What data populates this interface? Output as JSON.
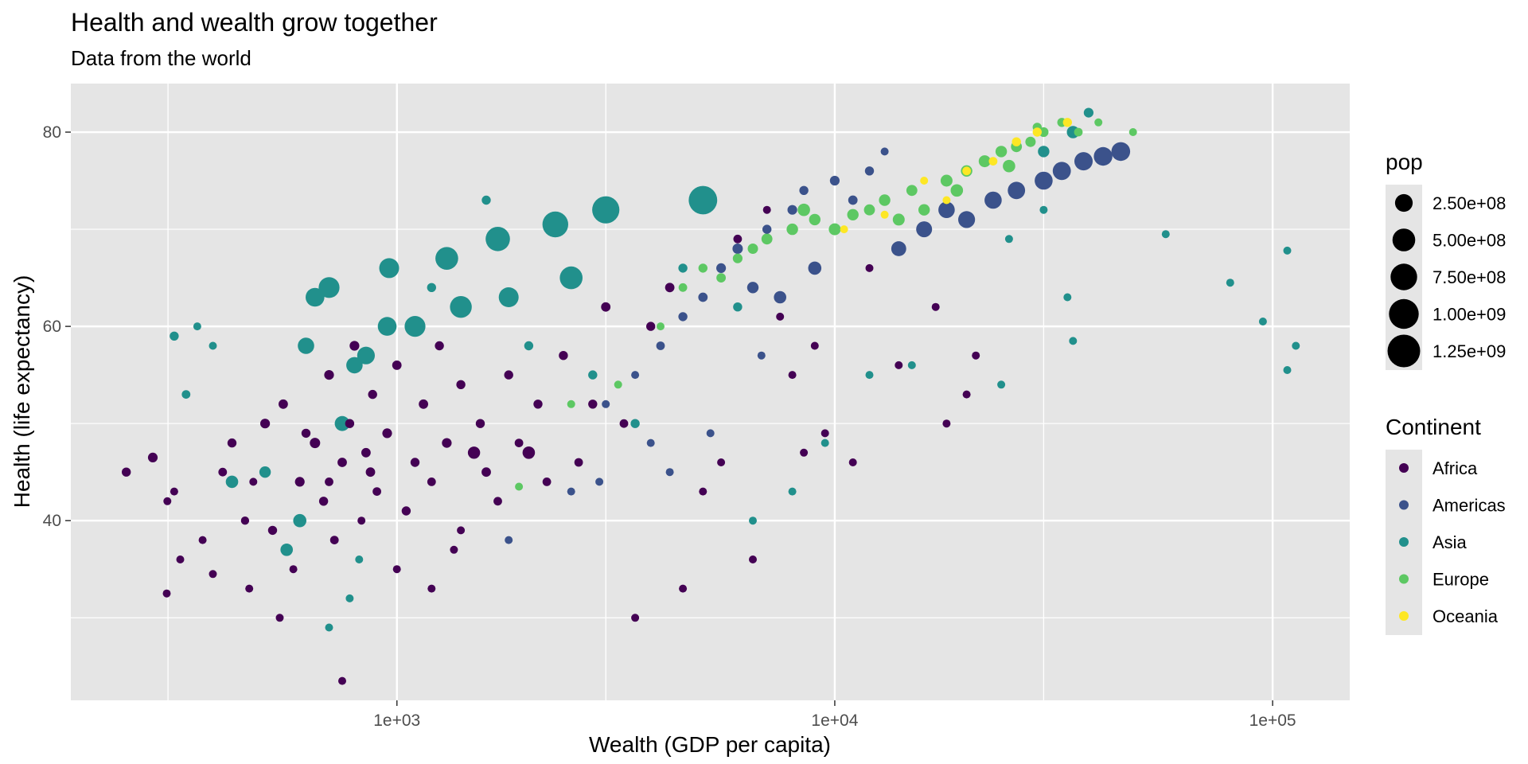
{
  "colors": {
    "panel": "#e5e5e5",
    "grid": "#ffffff",
    "Africa": "#440154",
    "Americas": "#3b528b",
    "Asia": "#21908c",
    "Europe": "#5dc863",
    "Oceania": "#fde725"
  },
  "chart_data": {
    "type": "scatter",
    "title": "Health and wealth grow together",
    "subtitle": "Data from the world",
    "xlabel": "Wealth (GDP per capita)",
    "ylabel": "Health (life expectancy)",
    "x_scale": "log10",
    "xlim": [
      180,
      150000
    ],
    "ylim": [
      21.5,
      85
    ],
    "x_ticks": [
      {
        "value": 1000,
        "label": "1e+03"
      },
      {
        "value": 10000,
        "label": "1e+04"
      },
      {
        "value": 100000,
        "label": "1e+05"
      }
    ],
    "y_ticks": [
      {
        "value": 40,
        "label": "40"
      },
      {
        "value": 60,
        "label": "60"
      },
      {
        "value": 80,
        "label": "80"
      }
    ],
    "grid": true,
    "size_legend": {
      "title": "pop",
      "entries": [
        {
          "value": 250000000,
          "label": "2.50e+08"
        },
        {
          "value": 500000000,
          "label": "5.00e+08"
        },
        {
          "value": 750000000,
          "label": "7.50e+08"
        },
        {
          "value": 1000000000,
          "label": "1.00e+09"
        },
        {
          "value": 1250000000,
          "label": "1.25e+09"
        }
      ]
    },
    "color_legend": {
      "title": "Continent",
      "entries": [
        "Africa",
        "Americas",
        "Asia",
        "Europe",
        "Oceania"
      ]
    },
    "legend_position": "right",
    "series": [
      {
        "name": "Africa",
        "points": [
          [
            241,
            45,
            20000000
          ],
          [
            277,
            46.5,
            30000000
          ],
          [
            299,
            42,
            10000000
          ],
          [
            310,
            43,
            8000000
          ],
          [
            320,
            36,
            5000000
          ],
          [
            298,
            32.5,
            5000000
          ],
          [
            360,
            38,
            8000000
          ],
          [
            380,
            34.5,
            10000000
          ],
          [
            400,
            45,
            15000000
          ],
          [
            420,
            48,
            20000000
          ],
          [
            450,
            40,
            12000000
          ],
          [
            470,
            44,
            8000000
          ],
          [
            500,
            50,
            30000000
          ],
          [
            520,
            39,
            20000000
          ],
          [
            550,
            52,
            25000000
          ],
          [
            580,
            35,
            10000000
          ],
          [
            600,
            44,
            30000000
          ],
          [
            650,
            48,
            40000000
          ],
          [
            680,
            42,
            20000000
          ],
          [
            700,
            55,
            30000000
          ],
          [
            720,
            38,
            15000000
          ],
          [
            750,
            46,
            25000000
          ],
          [
            780,
            50,
            20000000
          ],
          [
            800,
            58,
            30000000
          ],
          [
            830,
            40,
            10000000
          ],
          [
            850,
            47,
            25000000
          ],
          [
            880,
            53,
            20000000
          ],
          [
            900,
            43,
            15000000
          ],
          [
            950,
            49,
            30000000
          ],
          [
            1000,
            56,
            25000000
          ],
          [
            1050,
            41,
            20000000
          ],
          [
            1100,
            46,
            20000000
          ],
          [
            1150,
            52,
            25000000
          ],
          [
            1200,
            44,
            15000000
          ],
          [
            1250,
            58,
            20000000
          ],
          [
            1300,
            48,
            30000000
          ],
          [
            1350,
            37,
            10000000
          ],
          [
            1400,
            54,
            20000000
          ],
          [
            1500,
            47,
            75000000
          ],
          [
            1550,
            50,
            20000000
          ],
          [
            1600,
            45,
            25000000
          ],
          [
            1700,
            42,
            15000000
          ],
          [
            1800,
            55,
            20000000
          ],
          [
            1900,
            48,
            15000000
          ],
          [
            2000,
            47,
            80000000
          ],
          [
            2100,
            52,
            20000000
          ],
          [
            2200,
            44,
            15000000
          ],
          [
            2400,
            57,
            20000000
          ],
          [
            2600,
            46,
            15000000
          ],
          [
            2800,
            52,
            20000000
          ],
          [
            3000,
            62,
            25000000
          ],
          [
            3300,
            50,
            15000000
          ],
          [
            3500,
            30,
            5000000
          ],
          [
            3800,
            60,
            20000000
          ],
          [
            4200,
            64,
            25000000
          ],
          [
            4500,
            33,
            5000000
          ],
          [
            5000,
            43,
            5000000
          ],
          [
            5500,
            46,
            5000000
          ],
          [
            6000,
            69,
            15000000
          ],
          [
            6500,
            36,
            5000000
          ],
          [
            7000,
            72,
            10000000
          ],
          [
            7500,
            61,
            5000000
          ],
          [
            8000,
            55,
            5000000
          ],
          [
            8500,
            47,
            5000000
          ],
          [
            9000,
            58,
            5000000
          ],
          [
            9500,
            49,
            8000000
          ],
          [
            11000,
            46,
            5000000
          ],
          [
            12000,
            66,
            5000000
          ],
          [
            14000,
            56,
            5000000
          ],
          [
            17000,
            62,
            5000000
          ],
          [
            18000,
            50,
            5000000
          ],
          [
            21000,
            57,
            5000000
          ],
          [
            20000,
            53,
            5000000
          ],
          [
            750,
            23.5,
            5000000
          ],
          [
            540,
            30,
            5000000
          ],
          [
            460,
            33,
            5000000
          ],
          [
            1000,
            35,
            5000000
          ],
          [
            1200,
            33,
            5000000
          ],
          [
            1400,
            39,
            5000000
          ],
          [
            620,
            49,
            20000000
          ],
          [
            700,
            44,
            15000000
          ],
          [
            870,
            45,
            25000000
          ]
        ]
      },
      {
        "name": "Americas",
        "points": [
          [
            1800,
            38,
            5000000
          ],
          [
            2500,
            43,
            5000000
          ],
          [
            3000,
            52,
            10000000
          ],
          [
            3500,
            55,
            10000000
          ],
          [
            4000,
            58,
            15000000
          ],
          [
            4500,
            61,
            20000000
          ],
          [
            5000,
            63,
            25000000
          ],
          [
            5500,
            66,
            30000000
          ],
          [
            6000,
            68,
            40000000
          ],
          [
            6500,
            64,
            60000000
          ],
          [
            7000,
            70,
            20000000
          ],
          [
            7500,
            63,
            80000000
          ],
          [
            8000,
            72,
            30000000
          ],
          [
            8500,
            74,
            20000000
          ],
          [
            9000,
            66,
            100000000
          ],
          [
            10000,
            75,
            30000000
          ],
          [
            11000,
            73,
            25000000
          ],
          [
            12000,
            76,
            20000000
          ],
          [
            13000,
            78,
            5000000
          ],
          [
            14000,
            68,
            150000000
          ],
          [
            16000,
            70,
            180000000
          ],
          [
            18000,
            72,
            200000000
          ],
          [
            20000,
            71,
            220000000
          ],
          [
            23000,
            73,
            230000000
          ],
          [
            26000,
            74,
            240000000
          ],
          [
            30000,
            75,
            260000000
          ],
          [
            33000,
            76,
            270000000
          ],
          [
            37000,
            77,
            280000000
          ],
          [
            41000,
            77.5,
            290000000
          ],
          [
            45000,
            78,
            300000000
          ],
          [
            3800,
            48,
            5000000
          ],
          [
            4200,
            45,
            5000000
          ],
          [
            5200,
            49,
            5000000
          ],
          [
            6800,
            57,
            5000000
          ],
          [
            2900,
            44,
            5000000
          ]
        ]
      },
      {
        "name": "Asia",
        "points": [
          [
            310,
            59,
            20000000
          ],
          [
            330,
            53,
            15000000
          ],
          [
            350,
            60,
            10000000
          ],
          [
            380,
            58,
            10000000
          ],
          [
            420,
            44,
            80000000
          ],
          [
            500,
            45,
            60000000
          ],
          [
            560,
            37,
            80000000
          ],
          [
            600,
            40,
            100000000
          ],
          [
            620,
            58,
            200000000
          ],
          [
            650,
            63,
            300000000
          ],
          [
            700,
            64,
            400000000
          ],
          [
            750,
            50,
            150000000
          ],
          [
            800,
            56,
            200000000
          ],
          [
            850,
            57,
            250000000
          ],
          [
            950,
            60,
            300000000
          ],
          [
            960,
            66,
            350000000
          ],
          [
            1100,
            60,
            400000000
          ],
          [
            1300,
            67,
            500000000
          ],
          [
            1400,
            62,
            450000000
          ],
          [
            1700,
            69,
            600000000
          ],
          [
            1800,
            63,
            350000000
          ],
          [
            2300,
            70.5,
            700000000
          ],
          [
            2500,
            65,
            500000000
          ],
          [
            3000,
            72,
            800000000
          ],
          [
            5000,
            73,
            900000000
          ],
          [
            1600,
            73,
            20000000
          ],
          [
            1200,
            64,
            20000000
          ],
          [
            2000,
            58,
            20000000
          ],
          [
            2800,
            55,
            20000000
          ],
          [
            3500,
            50,
            20000000
          ],
          [
            4500,
            66,
            20000000
          ],
          [
            6000,
            62,
            20000000
          ],
          [
            8000,
            43,
            10000000
          ],
          [
            9500,
            48,
            10000000
          ],
          [
            12000,
            55,
            10000000
          ],
          [
            15000,
            56,
            10000000
          ],
          [
            24000,
            54,
            5000000
          ],
          [
            25000,
            69,
            10000000
          ],
          [
            30000,
            72,
            10000000
          ],
          [
            34000,
            63,
            10000000
          ],
          [
            35000,
            58.5,
            10000000
          ],
          [
            38000,
            82,
            30000000
          ],
          [
            57000,
            69.5,
            5000000
          ],
          [
            80000,
            64.5,
            5000000
          ],
          [
            95000,
            60.5,
            5000000
          ],
          [
            108000,
            67.8,
            5000000
          ],
          [
            108000,
            55.5,
            5000000
          ],
          [
            113000,
            58,
            5000000
          ],
          [
            700,
            29,
            10000000
          ],
          [
            780,
            32,
            10000000
          ],
          [
            820,
            36,
            5000000
          ],
          [
            6500,
            40,
            5000000
          ],
          [
            35000,
            80,
            80000000
          ],
          [
            30000,
            78,
            60000000
          ]
        ]
      },
      {
        "name": "Europe",
        "points": [
          [
            1900,
            43.5,
            10000000
          ],
          [
            2500,
            52,
            10000000
          ],
          [
            3200,
            54,
            10000000
          ],
          [
            4000,
            60,
            10000000
          ],
          [
            4500,
            64,
            15000000
          ],
          [
            5000,
            66,
            20000000
          ],
          [
            5500,
            65,
            25000000
          ],
          [
            6000,
            67,
            30000000
          ],
          [
            6500,
            68,
            40000000
          ],
          [
            7000,
            69,
            50000000
          ],
          [
            8000,
            70,
            60000000
          ],
          [
            9000,
            71,
            60000000
          ],
          [
            10000,
            70,
            70000000
          ],
          [
            11000,
            71.5,
            60000000
          ],
          [
            12000,
            72,
            50000000
          ],
          [
            13000,
            73,
            60000000
          ],
          [
            14000,
            71,
            70000000
          ],
          [
            15000,
            74,
            50000000
          ],
          [
            16000,
            72,
            60000000
          ],
          [
            18000,
            75,
            70000000
          ],
          [
            20000,
            76,
            60000000
          ],
          [
            22000,
            77,
            70000000
          ],
          [
            24000,
            78,
            60000000
          ],
          [
            26000,
            78.5,
            50000000
          ],
          [
            28000,
            79,
            40000000
          ],
          [
            30000,
            80,
            30000000
          ],
          [
            33000,
            81,
            20000000
          ],
          [
            36000,
            80,
            15000000
          ],
          [
            40000,
            81,
            10000000
          ],
          [
            48000,
            80,
            5000000
          ],
          [
            8500,
            72,
            80000000
          ],
          [
            19000,
            74,
            80000000
          ],
          [
            25000,
            76.5,
            80000000
          ],
          [
            29000,
            80.5,
            20000000
          ]
        ]
      },
      {
        "name": "Oceania",
        "points": [
          [
            10500,
            70,
            10000000
          ],
          [
            13000,
            71.5,
            10000000
          ],
          [
            18000,
            73,
            10000000
          ],
          [
            20000,
            76,
            15000000
          ],
          [
            23000,
            77,
            15000000
          ],
          [
            26000,
            79,
            20000000
          ],
          [
            29000,
            80,
            20000000
          ],
          [
            34000,
            81,
            20000000
          ],
          [
            16000,
            75,
            10000000
          ]
        ]
      }
    ]
  }
}
